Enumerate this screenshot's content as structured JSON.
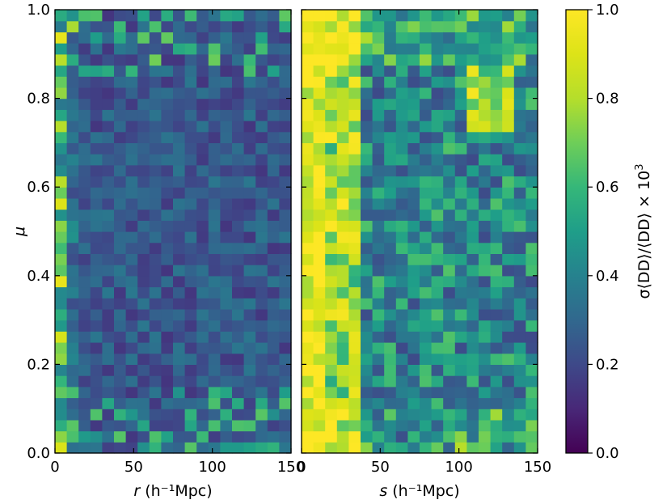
{
  "chart_data": [
    {
      "type": "heatmap",
      "panel": "left",
      "xlabel_var": "r",
      "xlabel_unit": "(h⁻¹Mpc)",
      "ylabel": "μ",
      "xlim": [
        0,
        150
      ],
      "ylim": [
        0.0,
        1.0
      ],
      "x_bins": 20,
      "y_bins": 40,
      "x_ticks": [
        "0",
        "50",
        "100",
        "150"
      ],
      "y_ticks": [
        "0.0",
        "0.2",
        "0.4",
        "0.6",
        "0.8",
        "1.0"
      ],
      "value_range": [
        0.0,
        1.0
      ],
      "description": "Uniformly low values (mostly 0.05–0.35), slightly higher (0.4–1.0) in the first r-bin, a few greenish cells near μ≈0.9 and μ≈0.1"
    },
    {
      "type": "heatmap",
      "panel": "right",
      "xlabel_var": "s",
      "xlabel_unit": "(h⁻¹Mpc)",
      "xlim": [
        0,
        150
      ],
      "ylim": [
        0.0,
        1.0
      ],
      "x_bins": 20,
      "y_bins": 40,
      "x_ticks": [
        "0",
        "50",
        "100",
        "150"
      ],
      "value_range": [
        0.0,
        1.0
      ],
      "description": "High values (0.8–1.0) for s < 40, moderate (0.3–0.7) elsewhere, bright patch near s≈110–130, μ≈0.8; enhanced values near μ≈0 and μ≈1"
    }
  ],
  "colorbar": {
    "label_main": "σ⟨DD⟩/⟨DD⟩ × 10",
    "label_exp": "3",
    "ticks": [
      "0.0",
      "0.2",
      "0.4",
      "0.6",
      "0.8",
      "1.0"
    ],
    "colormap": "viridis",
    "range": [
      0.0,
      1.0
    ]
  },
  "colors": {
    "viridis_low": "#440154",
    "viridis_mid": "#21918c",
    "viridis_high": "#fde725"
  }
}
